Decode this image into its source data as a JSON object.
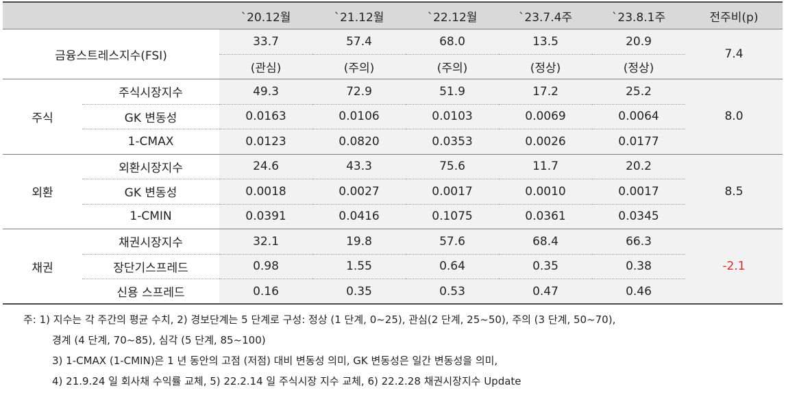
{
  "header": [
    "`20.12월",
    "`21.12월",
    "`22.12월",
    "`23.7.4주",
    "`23.8.1주",
    "전주비(p)"
  ],
  "fsi": {
    "label": "금융스트레스지수(FSI)",
    "values": [
      "33.7",
      "57.4",
      "68.0",
      "13.5",
      "20.9"
    ],
    "status": [
      "(관심)",
      "(주의)",
      "(주의)",
      "(정상)",
      "(정상)"
    ],
    "change": "7.4"
  },
  "groups": [
    {
      "name": "주식",
      "change": "8.0",
      "rows": [
        {
          "label": "주식시장지수",
          "values": [
            "49.3",
            "72.9",
            "51.9",
            "17.2",
            "25.2"
          ]
        },
        {
          "label": "GK 변동성",
          "values": [
            "0.0163",
            "0.0106",
            "0.0103",
            "0.0069",
            "0.0064"
          ]
        },
        {
          "label": "1-CMAX",
          "values": [
            "0.0123",
            "0.0820",
            "0.0353",
            "0.0026",
            "0.0177"
          ]
        }
      ]
    },
    {
      "name": "외환",
      "change": "8.5",
      "rows": [
        {
          "label": "외환시장지수",
          "values": [
            "24.6",
            "43.3",
            "75.6",
            "11.7",
            "20.2"
          ]
        },
        {
          "label": "GK 변동성",
          "values": [
            "0.0018",
            "0.0027",
            "0.0017",
            "0.0010",
            "0.0017"
          ]
        },
        {
          "label": "1-CMIN",
          "values": [
            "0.0391",
            "0.0416",
            "0.1075",
            "0.0361",
            "0.0345"
          ]
        }
      ]
    },
    {
      "name": "채권",
      "change": "-2.1",
      "rows": [
        {
          "label": "채권시장지수",
          "values": [
            "32.1",
            "19.8",
            "57.6",
            "68.4",
            "66.3"
          ]
        },
        {
          "label": "장단기스프레드",
          "values": [
            "0.98",
            "1.55",
            "0.64",
            "0.35",
            "0.38"
          ]
        },
        {
          "label": "신용 스프레드",
          "values": [
            "0.16",
            "0.35",
            "0.53",
            "0.47",
            "0.46"
          ]
        }
      ]
    }
  ],
  "notes": [
    "주: 1) 지수는 각 주간의 평균 수치, 2) 경보단계는 5 단계로 구성: 정상 (1 단계, 0~25), 관심(2 단계, 25~50), 주의 (3 단계, 50~70),",
    "경계 (4 단계, 70~85), 심각 (5 단계, 85~100)",
    "3) 1-CMAX (1-CMIN)은 1 년 동안의 고점 (저점) 대비 변동성 의미, GK 변동성은 일간 변동성을 의미,",
    "4) 21.9.24 일 회사채 수익률 교체, 5) 22.2.14 일 주식시장 지수 교체, 6) 22.2.28 채권시장지수 Update"
  ],
  "colors": {
    "header_bg": "#d9d9d9",
    "value_bg": "#f2f2f2",
    "negative": "#e0262b"
  }
}
